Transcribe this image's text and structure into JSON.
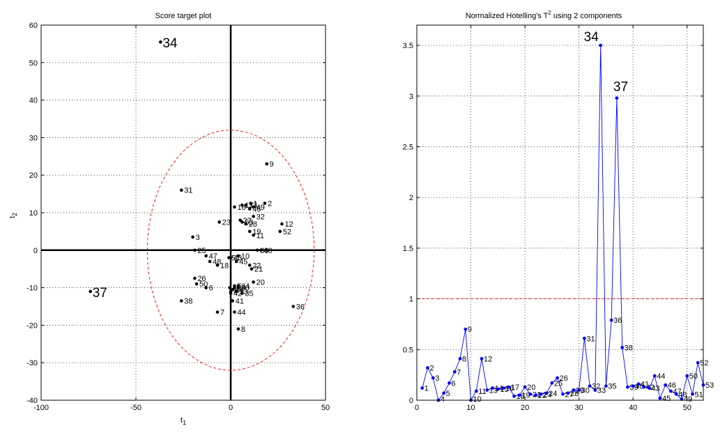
{
  "colors": {
    "axis": "#000000",
    "grid": "#000000",
    "ellipse": "#ff0000",
    "limit_line": "#ff0000",
    "series": "#0000ff",
    "points_left": "#000000"
  },
  "chart_data": [
    {
      "type": "scatter",
      "title": "Score target plot",
      "xlabel": "t",
      "xlabel_sub": "1",
      "ylabel": "t",
      "ylabel_sub": "2",
      "xlim": [
        -100,
        50
      ],
      "ylim": [
        -40,
        60
      ],
      "xticks": [
        -100,
        -50,
        0,
        50
      ],
      "yticks": [
        -40,
        -30,
        -20,
        -10,
        0,
        10,
        20,
        30,
        40,
        50,
        60
      ],
      "grid": true,
      "confidence_ellipse": {
        "cx": 0,
        "cy": 0,
        "rx": 44,
        "ry": 32
      },
      "highlight": [
        "34",
        "37"
      ],
      "points": [
        {
          "label": "1",
          "x": 10.5,
          "y": 12.5
        },
        {
          "label": "2",
          "x": 18,
          "y": 12.5
        },
        {
          "label": "3",
          "x": -20,
          "y": 3.5
        },
        {
          "label": "4",
          "x": 0,
          "y": -11
        },
        {
          "label": "5",
          "x": 2,
          "y": -9.5
        },
        {
          "label": "6",
          "x": -13,
          "y": -10
        },
        {
          "label": "7",
          "x": -7,
          "y": -16.5
        },
        {
          "label": "8",
          "x": 4,
          "y": -21
        },
        {
          "label": "9",
          "x": 19,
          "y": 23
        },
        {
          "label": "10",
          "x": 4,
          "y": -1.5
        },
        {
          "label": "11",
          "x": 12,
          "y": 4
        },
        {
          "label": "12",
          "x": 27,
          "y": 7
        },
        {
          "label": "13",
          "x": 3,
          "y": -11
        },
        {
          "label": "14",
          "x": 1,
          "y": -10.5
        },
        {
          "label": "15",
          "x": -0.5,
          "y": -10
        },
        {
          "label": "16",
          "x": 2,
          "y": 11.5
        },
        {
          "label": "17",
          "x": 6,
          "y": 12
        },
        {
          "label": "18",
          "x": -7,
          "y": -4
        },
        {
          "label": "19",
          "x": 10,
          "y": 5
        },
        {
          "label": "20",
          "x": 12,
          "y": -8.5
        },
        {
          "label": "21",
          "x": 11,
          "y": -5
        },
        {
          "label": "22",
          "x": 10,
          "y": -4
        },
        {
          "label": "23",
          "x": -6,
          "y": 7.5
        },
        {
          "label": "24",
          "x": 4,
          "y": -9.5
        },
        {
          "label": "25",
          "x": -19,
          "y": 0
        },
        {
          "label": "26",
          "x": -19,
          "y": -7.5
        },
        {
          "label": "27",
          "x": 5,
          "y": 8
        },
        {
          "label": "28",
          "x": 8,
          "y": 7
        },
        {
          "label": "29",
          "x": 2,
          "y": -10
        },
        {
          "label": "30",
          "x": 4,
          "y": -10
        },
        {
          "label": "31",
          "x": -26,
          "y": 16
        },
        {
          "label": "32",
          "x": 12,
          "y": 9
        },
        {
          "label": "33",
          "x": 8,
          "y": 12
        },
        {
          "label": "34",
          "x": -37,
          "y": 55.5
        },
        {
          "label": "35",
          "x": 6,
          "y": -11.5
        },
        {
          "label": "36",
          "x": 33,
          "y": -15
        },
        {
          "label": "37",
          "x": -74,
          "y": -11
        },
        {
          "label": "38",
          "x": -26,
          "y": -13.5
        },
        {
          "label": "39",
          "x": 14,
          "y": 0
        },
        {
          "label": "40",
          "x": 16,
          "y": 0
        },
        {
          "label": "41",
          "x": 1,
          "y": -13.5
        },
        {
          "label": "42",
          "x": 0,
          "y": -11.5
        },
        {
          "label": "43",
          "x": 0,
          "y": -2
        },
        {
          "label": "44",
          "x": 2,
          "y": -16.5
        },
        {
          "label": "45",
          "x": 3,
          "y": -3
        },
        {
          "label": "46",
          "x": 10,
          "y": 11
        },
        {
          "label": "47",
          "x": -13,
          "y": -1.5
        },
        {
          "label": "48",
          "x": -11,
          "y": -3
        },
        {
          "label": "49",
          "x": 12,
          "y": 11.5
        },
        {
          "label": "50",
          "x": -18,
          "y": -9
        },
        {
          "label": "51",
          "x": -1,
          "y": -2
        },
        {
          "label": "52",
          "x": 26,
          "y": 5
        },
        {
          "label": "53",
          "x": 6,
          "y": 7.5
        }
      ]
    },
    {
      "type": "line",
      "title": "Normalized Hotelling's T",
      "title_sup": "2",
      "title_suffix": "using 2 components",
      "xlim": [
        0,
        53
      ],
      "ylim": [
        0,
        3.7
      ],
      "xticks": [
        0,
        10,
        20,
        30,
        40,
        50
      ],
      "yticks": [
        0,
        0.5,
        1,
        1.5,
        2,
        2.5,
        3,
        3.5
      ],
      "grid": true,
      "limit": 1,
      "highlight": [
        "34",
        "37"
      ],
      "x": [
        1,
        2,
        3,
        4,
        5,
        6,
        7,
        8,
        9,
        10,
        11,
        12,
        13,
        14,
        15,
        16,
        17,
        18,
        19,
        20,
        21,
        22,
        23,
        24,
        25,
        26,
        27,
        28,
        29,
        30,
        31,
        32,
        33,
        34,
        35,
        36,
        37,
        38,
        39,
        40,
        41,
        42,
        43,
        44,
        45,
        46,
        47,
        48,
        49,
        50,
        51,
        52,
        53
      ],
      "values": [
        0.12,
        0.32,
        0.22,
        0.0,
        0.07,
        0.17,
        0.28,
        0.41,
        0.7,
        0.0,
        0.09,
        0.41,
        0.1,
        0.12,
        0.11,
        0.12,
        0.13,
        0.04,
        0.05,
        0.13,
        0.06,
        0.05,
        0.06,
        0.07,
        0.17,
        0.22,
        0.06,
        0.07,
        0.1,
        0.1,
        0.61,
        0.14,
        0.1,
        3.5,
        0.14,
        0.79,
        2.98,
        0.52,
        0.13,
        0.14,
        0.16,
        0.13,
        0.12,
        0.24,
        0.02,
        0.15,
        0.09,
        0.06,
        0.01,
        0.24,
        0.06,
        0.37,
        0.15
      ]
    }
  ]
}
